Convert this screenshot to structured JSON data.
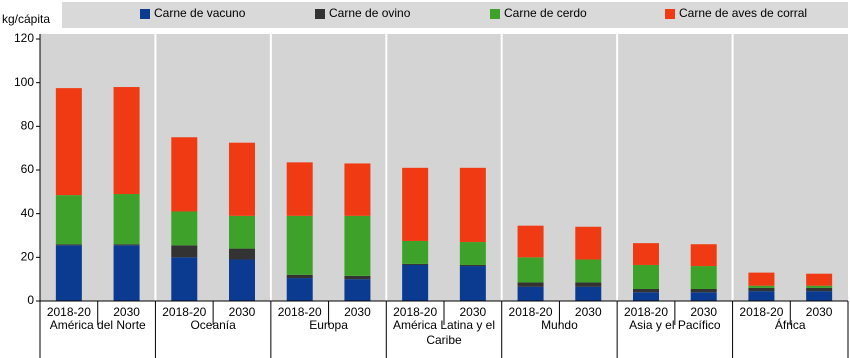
{
  "chart_data": {
    "type": "stacked-bar",
    "y_label": "kg/cápita",
    "categories": [
      "2018-20",
      "2030",
      "2018-20",
      "2030",
      "2018-20",
      "2030",
      "2018-20",
      "2030",
      "2018-20",
      "2030",
      "2018-20",
      "2030",
      "2018-20",
      "2030"
    ],
    "groups": [
      "América del Norte",
      "Oceanía",
      "Europa",
      "América Latina y el Caribe",
      "Mundo",
      "Asia y el Pacífico",
      "África"
    ],
    "series": [
      {
        "name": "Carne de vacuno",
        "color": "#0b3b91",
        "values": [
          25.5,
          25.5,
          20,
          19,
          10.5,
          10,
          16.5,
          16,
          6.5,
          6.5,
          4,
          4,
          4.5,
          4.5
        ]
      },
      {
        "name": "Carne de ovino",
        "color": "#333333",
        "values": [
          0.5,
          0.5,
          5.5,
          5,
          1.5,
          1.5,
          0.5,
          0.5,
          2,
          2,
          1.5,
          1.5,
          1.5,
          1.5
        ]
      },
      {
        "name": "Carne de cerdo",
        "color": "#3ea22a",
        "values": [
          22.5,
          23,
          15.5,
          15,
          27,
          27.5,
          10.5,
          10.5,
          11.5,
          10.5,
          11,
          10.5,
          1,
          1
        ]
      },
      {
        "name": "Carne de aves de corral",
        "color": "#f03a13",
        "values": [
          49,
          49,
          34,
          33.5,
          24.5,
          24,
          33.5,
          34,
          14.5,
          15,
          10,
          10,
          6,
          5.5
        ]
      }
    ],
    "ylim": [
      0,
      120
    ],
    "yticks": [
      0,
      20,
      40,
      60,
      80,
      100,
      120
    ]
  }
}
